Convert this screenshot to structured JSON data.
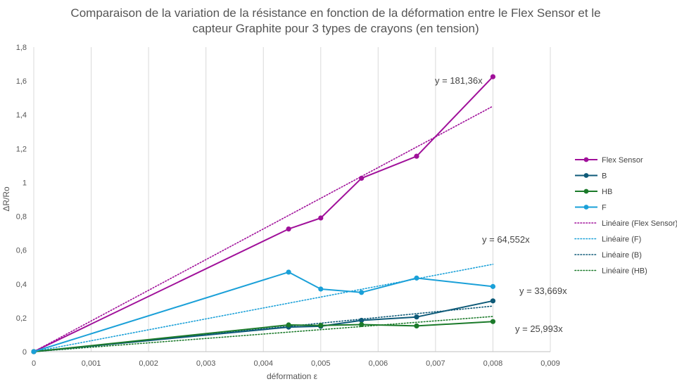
{
  "chart_data": {
    "type": "line",
    "title_lines": [
      "Comparaison de la variation de la résistance en fonction de la déformation entre le Flex Sensor et le",
      "capteur Graphite pour 3 types de crayons (en tension)"
    ],
    "xlabel": "déformation ε",
    "ylabel": "ΔR/Ro",
    "xlim": [
      0,
      0.009
    ],
    "ylim": [
      0,
      1.8
    ],
    "x_ticks": [
      "0",
      "0,001",
      "0,002",
      "0,003",
      "0,004",
      "0,005",
      "0,006",
      "0,007",
      "0,008",
      "0,009"
    ],
    "y_ticks": [
      "0",
      "0,2",
      "0,4",
      "0,6",
      "0,8",
      "1",
      "1,2",
      "1,4",
      "1,6",
      "1,8"
    ],
    "grid": "vertical",
    "legend_position": "right",
    "x": [
      0,
      0.00444,
      0.005,
      0.00571,
      0.00667,
      0.008
    ],
    "series": [
      {
        "name": "Flex Sensor",
        "color": "#A0109A",
        "values": [
          0,
          0.725,
          0.79,
          1.025,
          1.155,
          1.625
        ]
      },
      {
        "name": "B",
        "color": "#0E5A78",
        "values": [
          0,
          0.145,
          0.15,
          0.185,
          0.205,
          0.3
        ]
      },
      {
        "name": "HB",
        "color": "#1B7A2A",
        "values": [
          0,
          0.158,
          0.155,
          0.16,
          0.152,
          0.178
        ]
      },
      {
        "name": "F",
        "color": "#1AA0D8",
        "values": [
          0,
          0.47,
          0.37,
          0.35,
          0.435,
          0.385
        ]
      }
    ],
    "trendlines": [
      {
        "name": "Linéaire (Flex Sensor)",
        "color": "#A0109A",
        "slope": 181.36,
        "label": "y = 181,36x",
        "x_end": 0.008
      },
      {
        "name": "Linéaire (F)",
        "color": "#1AA0D8",
        "slope": 64.552,
        "label": "y = 64,552x",
        "x_end": 0.008
      },
      {
        "name": "Linéaire (B)",
        "color": "#0E5A78",
        "slope": 33.669,
        "label": "y = 33,669x",
        "x_end": 0.008
      },
      {
        "name": "Linéaire (HB)",
        "color": "#1B7A2A",
        "slope": 25.993,
        "label": "y = 25,993x",
        "x_end": 0.008
      }
    ]
  }
}
